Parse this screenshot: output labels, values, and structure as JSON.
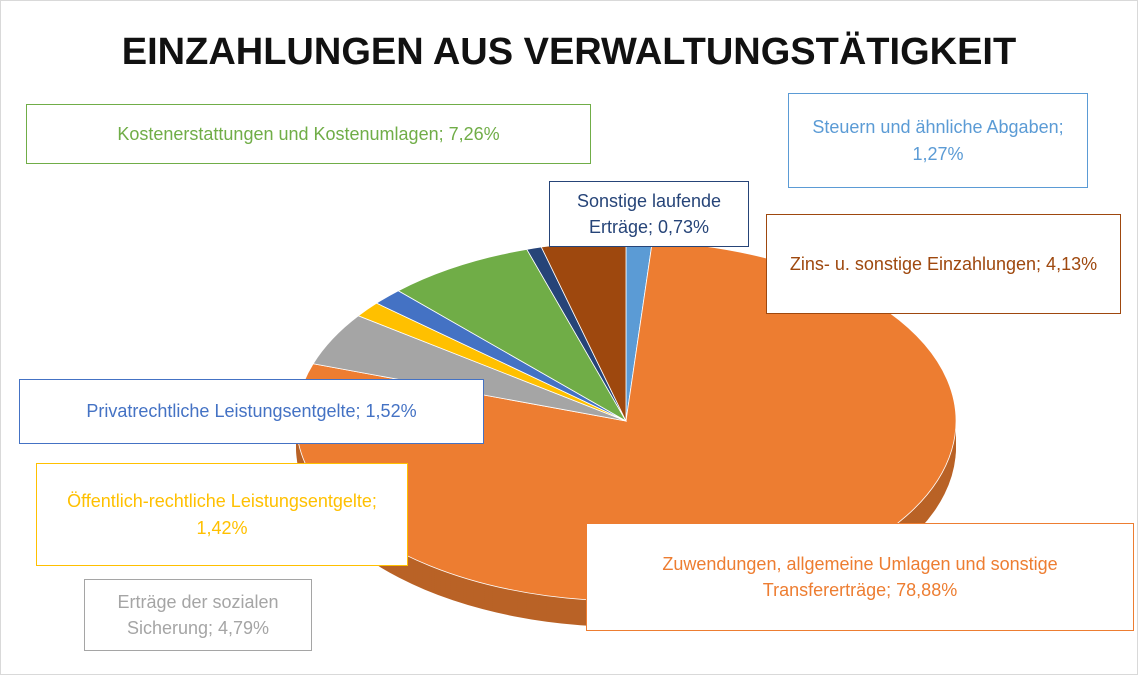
{
  "chart_data": {
    "type": "pie",
    "title": "EINZAHLUNGEN AUS VERWALTUNGSTÄTIGKEIT",
    "values": [
      1.27,
      78.88,
      4.79,
      1.42,
      1.52,
      7.26,
      0.73,
      4.13
    ],
    "value_labels": [
      "Steuern und ähnliche Abgaben; 1,27%",
      "Zuwendungen, allgemeine Umlagen und sonstige Transfererträge; 78,88%",
      "Erträge der sozialen Sicherung; 4,79%",
      "Öffentlich-rechtliche Leistungsentgelte; 1,42%",
      "Privatrechtliche Leistungsentgelte; 1,52%",
      "Kostenerstattungen und Kostenumlagen; 7,26%",
      "Sonstige laufende Erträge; 0,73%",
      "Zins- u. sonstige Einzahlungen; 4,13%"
    ],
    "colors": [
      "#5b9bd5",
      "#ed7d31",
      "#a5a5a5",
      "#ffc000",
      "#4472c4",
      "#70ad47",
      "#264478",
      "#9e480e"
    ]
  }
}
